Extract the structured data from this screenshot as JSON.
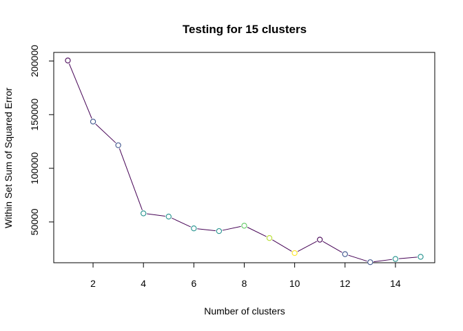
{
  "chart_data": {
    "type": "line",
    "title": "Testing for 15 clusters",
    "xlabel": "Number of clusters",
    "ylabel": "Within Set Sum of Squared Error",
    "xlim": [
      0.44,
      15.56
    ],
    "ylim": [
      12000,
      208000
    ],
    "x_ticks": [
      2,
      4,
      6,
      8,
      10,
      12,
      14
    ],
    "y_ticks": [
      50000,
      100000,
      150000,
      200000
    ],
    "grid": false,
    "legend": "none",
    "line_color": "#440154",
    "x": [
      1,
      2,
      3,
      4,
      5,
      6,
      7,
      8,
      9,
      10,
      11,
      12,
      13,
      14,
      15
    ],
    "values": [
      200500,
      143500,
      121500,
      58000,
      55000,
      44000,
      41500,
      46500,
      35000,
      21000,
      33500,
      20000,
      12500,
      15500,
      17500
    ],
    "point_colors": [
      "#440154",
      "#3b528b",
      "#3b528b",
      "#21918c",
      "#21918c",
      "#21918c",
      "#21918c",
      "#5ec962",
      "#b5de2b",
      "#fde725",
      "#440154",
      "#3b528b",
      "#3b528b",
      "#21918c",
      "#21918c"
    ]
  }
}
